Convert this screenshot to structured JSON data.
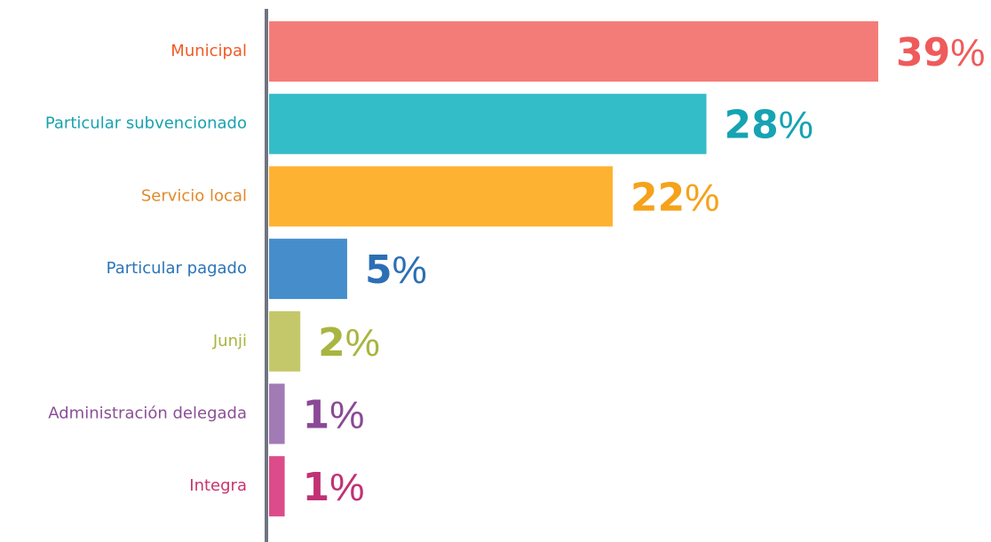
{
  "chart_data": {
    "type": "bar",
    "orientation": "horizontal",
    "categories": [
      "Municipal",
      "Particular subvencionado",
      "Servicio local",
      "Particular pagado",
      "Junji",
      "Administración delegada",
      "Integra"
    ],
    "values": [
      39,
      28,
      22,
      5,
      2,
      1,
      1
    ],
    "value_labels": [
      "39%",
      "28%",
      "22%",
      "5%",
      "2%",
      "1%",
      "1%"
    ],
    "colors": [
      "#f47c78",
      "#33bdc8",
      "#fdb232",
      "#468ecb",
      "#c4c86a",
      "#a27ab6",
      "#dc4c8a"
    ],
    "label_colors": [
      "#f15a24",
      "#17a2b0",
      "#e08a2c",
      "#2a74b8",
      "#a9b53c",
      "#8a4f96",
      "#c8336e"
    ],
    "value_label_colors": [
      "#ef5b5b",
      "#16a3b3",
      "#f6a21a",
      "#2c6fb4",
      "#a9b540",
      "#8a4996",
      "#c03274"
    ]
  }
}
